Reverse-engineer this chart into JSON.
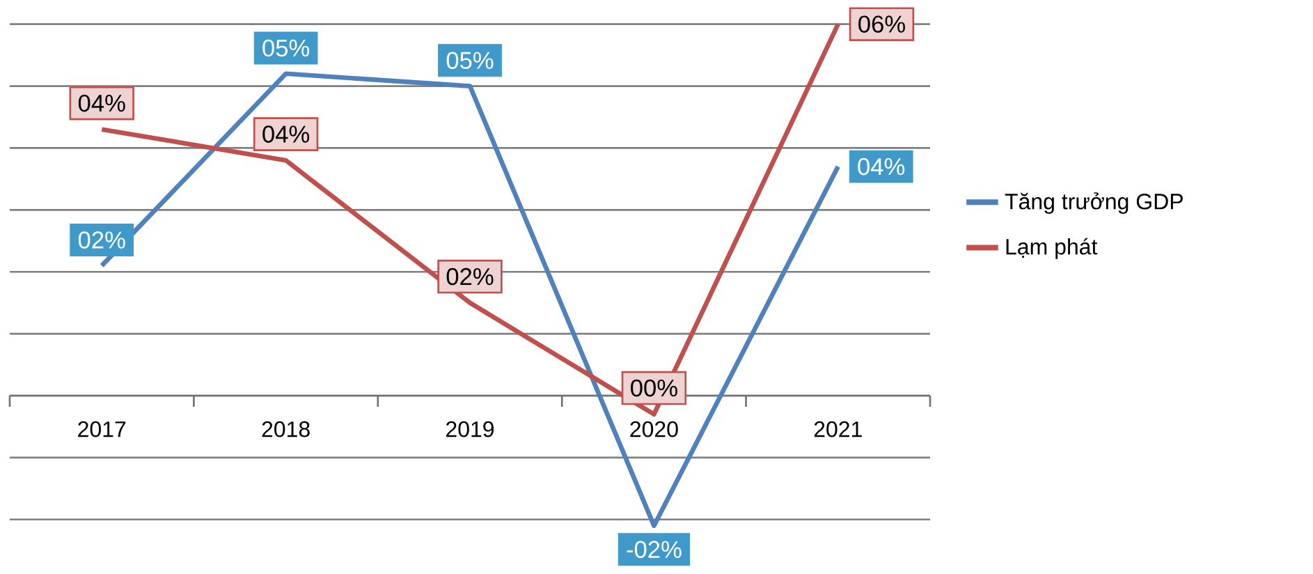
{
  "chart_data": {
    "type": "line",
    "categories": [
      "2017",
      "2018",
      "2019",
      "2020",
      "2021"
    ],
    "series": [
      {
        "name": "Tăng trưởng GDP",
        "color": "#4f81bd",
        "values": [
          2.1,
          5.2,
          5.0,
          -2.1,
          3.7
        ],
        "value_labels": [
          "02%",
          "05%",
          "05%",
          "-02%",
          "04%"
        ]
      },
      {
        "name": "Lạm phát",
        "color": "#c0504d",
        "values": [
          4.3,
          3.8,
          1.5,
          -0.3,
          6.0
        ],
        "value_labels": [
          "04%",
          "04%",
          "02%",
          "00%",
          "06%"
        ]
      }
    ],
    "grid": "y",
    "tick_labels": "x",
    "legend": "right",
    "marker": "none",
    "line_style": "solid"
  }
}
